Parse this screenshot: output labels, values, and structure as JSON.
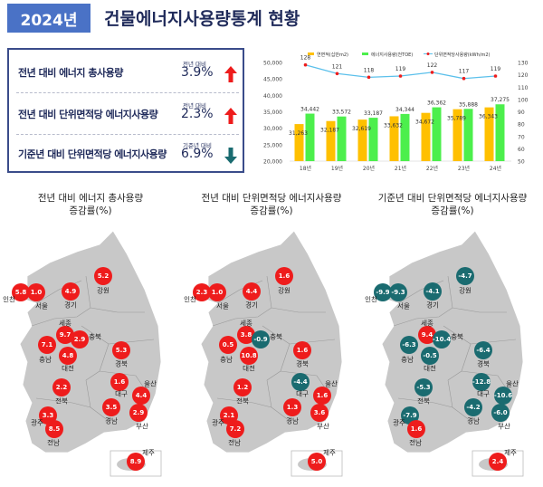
{
  "header": {
    "year_badge": "2024년",
    "title": "건물에너지사용량통계 현황"
  },
  "kpis": [
    {
      "label": "전년 대비 에너지 총사용량",
      "sub": "전년 대비",
      "value": "3.9%",
      "direction": "up"
    },
    {
      "label": "전년 대비 단위면적당 에너지사용량",
      "sub": "전년 대비",
      "value": "2.3%",
      "direction": "up"
    },
    {
      "label": "기준년 대비 단위면적당 에너지사용량",
      "sub": "기준년 대비",
      "value": "6.9%",
      "direction": "down"
    }
  ],
  "colors": {
    "up": "#ee1c1c",
    "down": "#1a6b70",
    "area_bar": "#ffc000",
    "energy_bar": "#4cef4c",
    "line": "#5bc0eb",
    "marker": "#ee1c1c",
    "badge": "#4a72c6",
    "map_fill": "#c8c8c8"
  },
  "chart_data": {
    "type": "bar",
    "title": "",
    "categories": [
      "18년",
      "19년",
      "20년",
      "21년",
      "22년",
      "23년",
      "24년"
    ],
    "series": [
      {
        "name": "연면적(십만m2)",
        "type": "bar",
        "axis": "left",
        "values": [
          31263,
          32187,
          32619,
          33632,
          34672,
          35789,
          36343
        ]
      },
      {
        "name": "에너지사용량(천TOE)",
        "type": "bar",
        "axis": "left",
        "values": [
          34442,
          33572,
          33187,
          34344,
          36362,
          35888,
          37275
        ]
      },
      {
        "name": "단위면적당사용량(kWh/m2)",
        "type": "line",
        "axis": "right",
        "values": [
          128,
          121,
          118,
          119,
          122,
          117,
          119
        ]
      }
    ],
    "y_left": {
      "ticks": [
        "20,000",
        "25,000",
        "30,000",
        "35,000",
        "40,000",
        "45,000",
        "50,000"
      ],
      "ylim": [
        20000,
        50000
      ]
    },
    "y_right": {
      "ticks": [
        "50",
        "60",
        "70",
        "80",
        "90",
        "100",
        "110",
        "120",
        "130"
      ],
      "ylim": [
        50,
        130
      ]
    },
    "legend_position": "top",
    "grid": false
  },
  "maps": [
    {
      "title_line1": "전년 대비 에너지 총사용량",
      "title_line2": "증감률(%)",
      "regions": [
        {
          "name": "인천",
          "value": "5.8",
          "dir": "up"
        },
        {
          "name": "서울",
          "value": "1.0",
          "dir": "up"
        },
        {
          "name": "경기",
          "value": "4.9",
          "dir": "up"
        },
        {
          "name": "강원",
          "value": "5.2",
          "dir": "up"
        },
        {
          "name": "세종",
          "value": "9.7",
          "dir": "up"
        },
        {
          "name": "충북",
          "value": "2.9",
          "dir": "up"
        },
        {
          "name": "충남",
          "value": "7.1",
          "dir": "up"
        },
        {
          "name": "대전",
          "value": "4.8",
          "dir": "up"
        },
        {
          "name": "경북",
          "value": "5.3",
          "dir": "up"
        },
        {
          "name": "대구",
          "value": "1.6",
          "dir": "up"
        },
        {
          "name": "울산",
          "value": "4.4",
          "dir": "up"
        },
        {
          "name": "전북",
          "value": "2.2",
          "dir": "up"
        },
        {
          "name": "경남",
          "value": "3.5",
          "dir": "up"
        },
        {
          "name": "부산",
          "value": "2.9",
          "dir": "up"
        },
        {
          "name": "광주",
          "value": "3.3",
          "dir": "up"
        },
        {
          "name": "전남",
          "value": "8.5",
          "dir": "up"
        },
        {
          "name": "제주",
          "value": "8.9",
          "dir": "up"
        }
      ]
    },
    {
      "title_line1": "전년 대비 단위면적당 에너지사용량",
      "title_line2": "증감률(%)",
      "regions": [
        {
          "name": "인천",
          "value": "2.3",
          "dir": "up"
        },
        {
          "name": "서울",
          "value": "1.0",
          "dir": "up"
        },
        {
          "name": "경기",
          "value": "4.4",
          "dir": "up"
        },
        {
          "name": "강원",
          "value": "1.6",
          "dir": "up"
        },
        {
          "name": "세종",
          "value": "3.8",
          "dir": "up"
        },
        {
          "name": "충북",
          "value": "-0.9",
          "dir": "down"
        },
        {
          "name": "충남",
          "value": "0.5",
          "dir": "up"
        },
        {
          "name": "대전",
          "value": "10.8",
          "dir": "up"
        },
        {
          "name": "경북",
          "value": "1.6",
          "dir": "up"
        },
        {
          "name": "대구",
          "value": "-4.4",
          "dir": "down"
        },
        {
          "name": "울산",
          "value": "1.6",
          "dir": "up"
        },
        {
          "name": "전북",
          "value": "1.2",
          "dir": "up"
        },
        {
          "name": "경남",
          "value": "1.3",
          "dir": "up"
        },
        {
          "name": "부산",
          "value": "3.6",
          "dir": "up"
        },
        {
          "name": "광주",
          "value": "2.1",
          "dir": "up"
        },
        {
          "name": "전남",
          "value": "7.2",
          "dir": "up"
        },
        {
          "name": "제주",
          "value": "5.0",
          "dir": "up"
        }
      ]
    },
    {
      "title_line1": "기준년 대비 단위면적당 에너지사용량",
      "title_line2": "증감률(%)",
      "regions": [
        {
          "name": "인천",
          "value": "-9.9",
          "dir": "down"
        },
        {
          "name": "서울",
          "value": "-9.3",
          "dir": "down"
        },
        {
          "name": "경기",
          "value": "-4.1",
          "dir": "down"
        },
        {
          "name": "강원",
          "value": "-4.7",
          "dir": "down"
        },
        {
          "name": "세종",
          "value": "9.4",
          "dir": "up"
        },
        {
          "name": "충북",
          "value": "-10.4",
          "dir": "down"
        },
        {
          "name": "충남",
          "value": "-6.3",
          "dir": "down"
        },
        {
          "name": "대전",
          "value": "-0.5",
          "dir": "down"
        },
        {
          "name": "경북",
          "value": "-6.4",
          "dir": "down"
        },
        {
          "name": "대구",
          "value": "-12.8",
          "dir": "down"
        },
        {
          "name": "울산",
          "value": "-10.6",
          "dir": "down"
        },
        {
          "name": "전북",
          "value": "-5.3",
          "dir": "down"
        },
        {
          "name": "경남",
          "value": "-4.2",
          "dir": "down"
        },
        {
          "name": "부산",
          "value": "-6.0",
          "dir": "down"
        },
        {
          "name": "광주",
          "value": "-7.9",
          "dir": "down"
        },
        {
          "name": "전남",
          "value": "1.6",
          "dir": "up"
        },
        {
          "name": "제주",
          "value": "2.4",
          "dir": "up"
        }
      ]
    }
  ]
}
